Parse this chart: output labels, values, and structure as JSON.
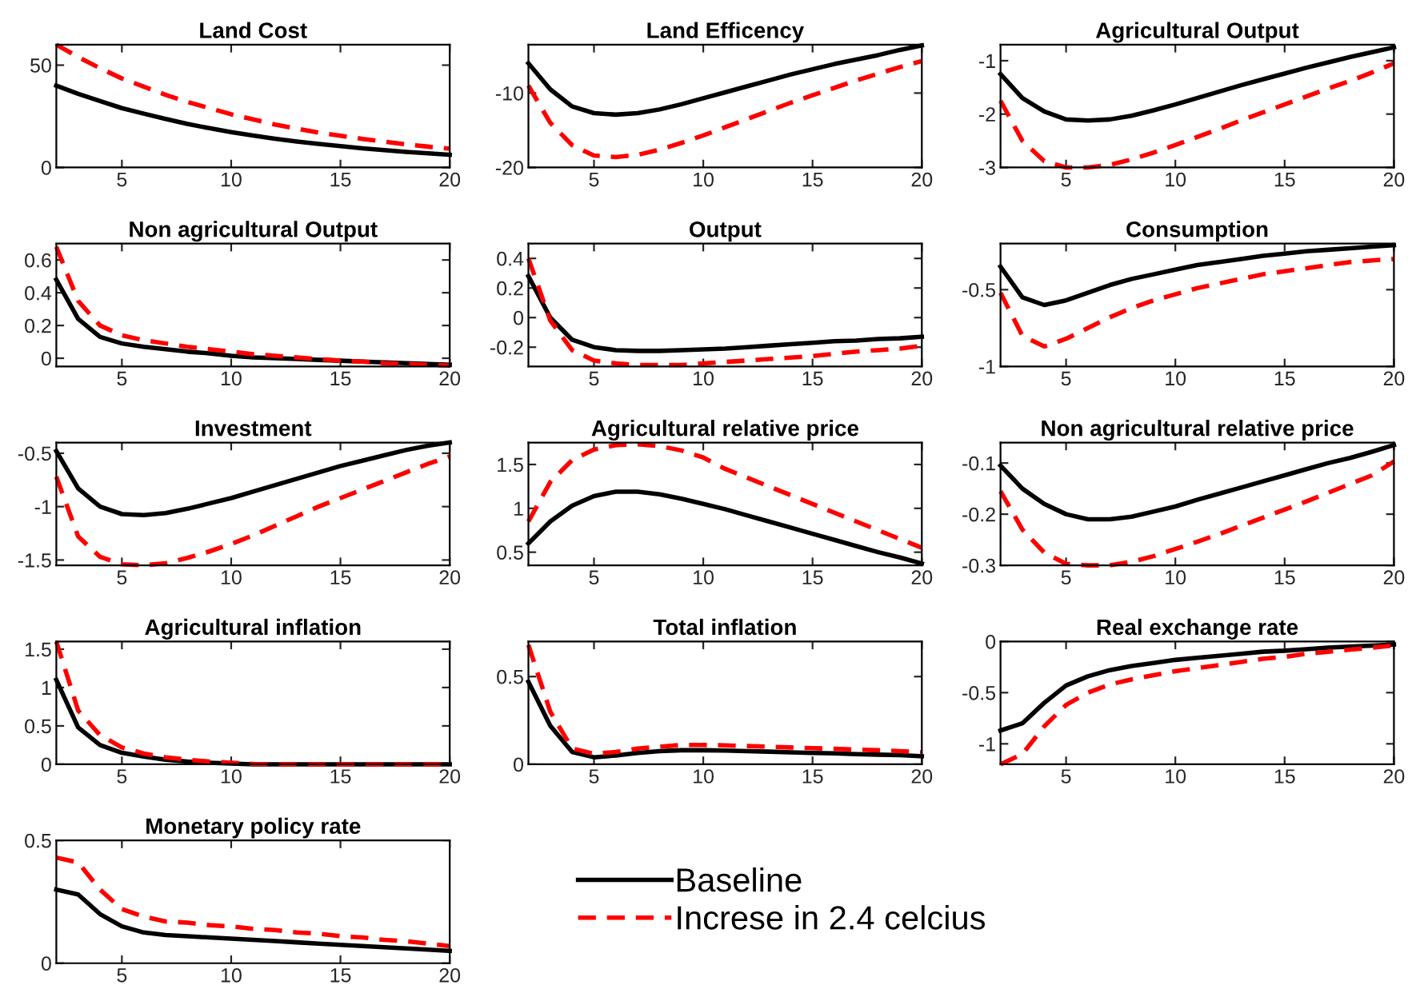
{
  "chart_data": [
    {
      "type": "line",
      "title": "Land Cost",
      "x": [
        2,
        3,
        4,
        5,
        6,
        7,
        8,
        9,
        10,
        11,
        12,
        13,
        14,
        15,
        16,
        17,
        18,
        19,
        20
      ],
      "xlim": [
        2,
        20
      ],
      "xticks": [
        5,
        10,
        15,
        20
      ],
      "ylim": [
        0,
        60
      ],
      "yticks": [
        0,
        50
      ],
      "grid": false,
      "series": [
        {
          "color": "#000000",
          "line_style": "solid",
          "values": [
            40,
            36,
            32.5,
            29,
            26.3,
            23.7,
            21.3,
            19.2,
            17.3,
            15.6,
            14.1,
            12.7,
            11.5,
            10.4,
            9.4,
            8.5,
            7.6,
            6.9,
            6.2
          ]
        },
        {
          "color": "#ff0000",
          "line_style": "dashed",
          "values": [
            60,
            54,
            48.5,
            43.5,
            39.5,
            35.5,
            32,
            29,
            26,
            23.5,
            21,
            19,
            17,
            15.5,
            14,
            12.6,
            11.3,
            10.2,
            9.2
          ]
        }
      ]
    },
    {
      "type": "line",
      "title": "Land Efficency",
      "x": [
        2,
        3,
        4,
        5,
        6,
        7,
        8,
        9,
        10,
        11,
        12,
        13,
        14,
        15,
        16,
        17,
        18,
        19,
        20
      ],
      "xlim": [
        2,
        20
      ],
      "xticks": [
        5,
        10,
        15,
        20
      ],
      "ylim": [
        -20,
        -3.5
      ],
      "yticks": [
        -20,
        -10
      ],
      "grid": false,
      "series": [
        {
          "color": "#000000",
          "line_style": "solid",
          "values": [
            -6,
            -9.5,
            -11.8,
            -12.7,
            -12.9,
            -12.7,
            -12.2,
            -11.5,
            -10.7,
            -9.9,
            -9.1,
            -8.3,
            -7.5,
            -6.8,
            -6.1,
            -5.5,
            -4.9,
            -4.2,
            -3.6
          ]
        },
        {
          "color": "#ff0000",
          "line_style": "dashed",
          "values": [
            -9,
            -14,
            -17,
            -18.4,
            -18.6,
            -18.3,
            -17.6,
            -16.7,
            -15.7,
            -14.6,
            -13.5,
            -12.4,
            -11.3,
            -10.3,
            -9.3,
            -8.3,
            -7.4,
            -6.5,
            -5.7
          ]
        }
      ]
    },
    {
      "type": "line",
      "title": "Agricultural Output",
      "x": [
        2,
        3,
        4,
        5,
        6,
        7,
        8,
        9,
        10,
        11,
        12,
        13,
        14,
        15,
        16,
        17,
        18,
        19,
        20
      ],
      "xlim": [
        2,
        20
      ],
      "xticks": [
        5,
        10,
        15,
        20
      ],
      "ylim": [
        -3,
        -0.7
      ],
      "yticks": [
        -3,
        -2,
        -1
      ],
      "grid": false,
      "series": [
        {
          "color": "#000000",
          "line_style": "solid",
          "values": [
            -1.25,
            -1.7,
            -1.95,
            -2.1,
            -2.12,
            -2.1,
            -2.03,
            -1.93,
            -1.82,
            -1.7,
            -1.58,
            -1.46,
            -1.35,
            -1.24,
            -1.13,
            -1.03,
            -0.93,
            -0.84,
            -0.75
          ]
        },
        {
          "color": "#ff0000",
          "line_style": "dashed",
          "values": [
            -1.75,
            -2.5,
            -2.88,
            -3.0,
            -3.0,
            -2.95,
            -2.85,
            -2.72,
            -2.58,
            -2.43,
            -2.28,
            -2.12,
            -1.97,
            -1.82,
            -1.67,
            -1.52,
            -1.38,
            -1.22,
            -1.05
          ]
        }
      ]
    },
    {
      "type": "line",
      "title": "Non agricultural Output",
      "x": [
        2,
        3,
        4,
        5,
        6,
        7,
        8,
        9,
        10,
        11,
        12,
        13,
        14,
        15,
        16,
        17,
        18,
        19,
        20
      ],
      "xlim": [
        2,
        20
      ],
      "xticks": [
        5,
        10,
        15,
        20
      ],
      "ylim": [
        -0.05,
        0.7
      ],
      "yticks": [
        0,
        0.2,
        0.4,
        0.6
      ],
      "grid": false,
      "series": [
        {
          "color": "#000000",
          "line_style": "solid",
          "values": [
            0.48,
            0.24,
            0.13,
            0.09,
            0.07,
            0.055,
            0.04,
            0.03,
            0.015,
            0.005,
            0,
            -0.005,
            -0.01,
            -0.015,
            -0.02,
            -0.025,
            -0.03,
            -0.035,
            -0.04
          ]
        },
        {
          "color": "#ff0000",
          "line_style": "dashed",
          "values": [
            0.68,
            0.35,
            0.2,
            0.14,
            0.11,
            0.09,
            0.07,
            0.055,
            0.04,
            0.025,
            0.015,
            0.005,
            -0.005,
            -0.015,
            -0.02,
            -0.03,
            -0.035,
            -0.04,
            -0.045
          ]
        }
      ]
    },
    {
      "type": "line",
      "title": "Output",
      "x": [
        2,
        3,
        4,
        5,
        6,
        7,
        8,
        9,
        10,
        11,
        12,
        13,
        14,
        15,
        16,
        17,
        18,
        19,
        20
      ],
      "xlim": [
        2,
        20
      ],
      "xticks": [
        5,
        10,
        15,
        20
      ],
      "ylim": [
        -0.33,
        0.5
      ],
      "yticks": [
        -0.2,
        0,
        0.2,
        0.4
      ],
      "grid": false,
      "series": [
        {
          "color": "#000000",
          "line_style": "solid",
          "values": [
            0.28,
            0.0,
            -0.15,
            -0.2,
            -0.22,
            -0.225,
            -0.225,
            -0.22,
            -0.215,
            -0.21,
            -0.2,
            -0.19,
            -0.18,
            -0.17,
            -0.16,
            -0.155,
            -0.145,
            -0.14,
            -0.13
          ]
        },
        {
          "color": "#ff0000",
          "line_style": "dashed",
          "values": [
            0.4,
            -0.02,
            -0.22,
            -0.29,
            -0.31,
            -0.32,
            -0.32,
            -0.32,
            -0.31,
            -0.3,
            -0.29,
            -0.28,
            -0.27,
            -0.26,
            -0.245,
            -0.23,
            -0.22,
            -0.21,
            -0.19
          ]
        }
      ]
    },
    {
      "type": "line",
      "title": "Consumption",
      "x": [
        2,
        3,
        4,
        5,
        6,
        7,
        8,
        9,
        10,
        11,
        12,
        13,
        14,
        15,
        16,
        17,
        18,
        19,
        20
      ],
      "xlim": [
        2,
        20
      ],
      "xticks": [
        5,
        10,
        15,
        20
      ],
      "ylim": [
        -1,
        -0.2
      ],
      "yticks": [
        -1,
        -0.5
      ],
      "grid": false,
      "series": [
        {
          "color": "#000000",
          "line_style": "solid",
          "values": [
            -0.35,
            -0.55,
            -0.6,
            -0.57,
            -0.52,
            -0.47,
            -0.43,
            -0.4,
            -0.37,
            -0.34,
            -0.32,
            -0.3,
            -0.28,
            -0.265,
            -0.25,
            -0.24,
            -0.23,
            -0.22,
            -0.21
          ]
        },
        {
          "color": "#ff0000",
          "line_style": "dashed",
          "values": [
            -0.52,
            -0.8,
            -0.87,
            -0.82,
            -0.75,
            -0.68,
            -0.62,
            -0.57,
            -0.53,
            -0.49,
            -0.46,
            -0.43,
            -0.4,
            -0.38,
            -0.36,
            -0.34,
            -0.32,
            -0.31,
            -0.3
          ]
        }
      ]
    },
    {
      "type": "line",
      "title": "Investment",
      "x": [
        2,
        3,
        4,
        5,
        6,
        7,
        8,
        9,
        10,
        11,
        12,
        13,
        14,
        15,
        16,
        17,
        18,
        19,
        20
      ],
      "xlim": [
        2,
        20
      ],
      "xticks": [
        5,
        10,
        15,
        20
      ],
      "ylim": [
        -1.55,
        -0.4
      ],
      "yticks": [
        -1.5,
        -1,
        -0.5
      ],
      "grid": false,
      "series": [
        {
          "color": "#000000",
          "line_style": "solid",
          "values": [
            -0.48,
            -0.83,
            -1.0,
            -1.07,
            -1.08,
            -1.06,
            -1.02,
            -0.97,
            -0.92,
            -0.86,
            -0.8,
            -0.74,
            -0.68,
            -0.62,
            -0.57,
            -0.52,
            -0.47,
            -0.43,
            -0.4
          ]
        },
        {
          "color": "#ff0000",
          "line_style": "dashed",
          "values": [
            -0.72,
            -1.28,
            -1.47,
            -1.54,
            -1.55,
            -1.53,
            -1.48,
            -1.42,
            -1.35,
            -1.27,
            -1.18,
            -1.09,
            -1.0,
            -0.92,
            -0.84,
            -0.76,
            -0.68,
            -0.6,
            -0.53
          ]
        }
      ]
    },
    {
      "type": "line",
      "title": "Agricultural relative price",
      "x": [
        2,
        3,
        4,
        5,
        6,
        7,
        8,
        9,
        10,
        11,
        12,
        13,
        14,
        15,
        16,
        17,
        18,
        19,
        20
      ],
      "xlim": [
        2,
        20
      ],
      "xticks": [
        5,
        10,
        15,
        20
      ],
      "ylim": [
        0.35,
        1.75
      ],
      "yticks": [
        0.5,
        1,
        1.5
      ],
      "grid": false,
      "series": [
        {
          "color": "#000000",
          "line_style": "solid",
          "values": [
            0.6,
            0.85,
            1.03,
            1.14,
            1.19,
            1.19,
            1.16,
            1.11,
            1.05,
            0.99,
            0.92,
            0.85,
            0.78,
            0.71,
            0.64,
            0.57,
            0.5,
            0.44,
            0.37
          ]
        },
        {
          "color": "#ff0000",
          "line_style": "dashed",
          "values": [
            0.85,
            1.3,
            1.55,
            1.67,
            1.72,
            1.73,
            1.71,
            1.66,
            1.58,
            1.45,
            1.35,
            1.25,
            1.15,
            1.05,
            0.95,
            0.85,
            0.75,
            0.65,
            0.55
          ]
        }
      ]
    },
    {
      "type": "line",
      "title": "Non agricultural relative price",
      "x": [
        2,
        3,
        4,
        5,
        6,
        7,
        8,
        9,
        10,
        11,
        12,
        13,
        14,
        15,
        16,
        17,
        18,
        19,
        20
      ],
      "xlim": [
        2,
        20
      ],
      "xticks": [
        5,
        10,
        15,
        20
      ],
      "ylim": [
        -0.3,
        -0.06
      ],
      "yticks": [
        -0.3,
        -0.2,
        -0.1
      ],
      "grid": false,
      "series": [
        {
          "color": "#000000",
          "line_style": "solid",
          "values": [
            -0.105,
            -0.15,
            -0.18,
            -0.2,
            -0.21,
            -0.21,
            -0.205,
            -0.195,
            -0.185,
            -0.172,
            -0.16,
            -0.148,
            -0.136,
            -0.124,
            -0.112,
            -0.1,
            -0.09,
            -0.078,
            -0.065
          ]
        },
        {
          "color": "#ff0000",
          "line_style": "dashed",
          "values": [
            -0.155,
            -0.23,
            -0.275,
            -0.297,
            -0.3,
            -0.3,
            -0.293,
            -0.282,
            -0.268,
            -0.254,
            -0.239,
            -0.223,
            -0.207,
            -0.191,
            -0.175,
            -0.158,
            -0.141,
            -0.124,
            -0.097
          ]
        }
      ]
    },
    {
      "type": "line",
      "title": "Agricultural inflation",
      "x": [
        2,
        3,
        4,
        5,
        6,
        7,
        8,
        9,
        10,
        11,
        12,
        13,
        14,
        15,
        16,
        17,
        18,
        19,
        20
      ],
      "xlim": [
        2,
        20
      ],
      "xticks": [
        5,
        10,
        15,
        20
      ],
      "ylim": [
        0,
        1.6
      ],
      "yticks": [
        0,
        0.5,
        1,
        1.5
      ],
      "grid": false,
      "series": [
        {
          "color": "#000000",
          "line_style": "solid",
          "values": [
            1.1,
            0.48,
            0.25,
            0.15,
            0.1,
            0.06,
            0.035,
            0.02,
            0.01,
            0,
            0,
            0,
            0,
            0,
            0,
            0,
            0,
            0,
            0
          ]
        },
        {
          "color": "#ff0000",
          "line_style": "dashed",
          "values": [
            1.6,
            0.7,
            0.38,
            0.22,
            0.14,
            0.09,
            0.06,
            0.035,
            0.02,
            0.005,
            0,
            0,
            0,
            0,
            0,
            0,
            0,
            0,
            0
          ]
        }
      ]
    },
    {
      "type": "line",
      "title": "Total inflation",
      "x": [
        2,
        3,
        4,
        5,
        6,
        7,
        8,
        9,
        10,
        11,
        12,
        13,
        14,
        15,
        16,
        17,
        18,
        19,
        20
      ],
      "xlim": [
        2,
        20
      ],
      "xticks": [
        5,
        10,
        15,
        20
      ],
      "ylim": [
        0,
        0.7
      ],
      "yticks": [
        0,
        0.5
      ],
      "grid": false,
      "series": [
        {
          "color": "#000000",
          "line_style": "solid",
          "values": [
            0.47,
            0.22,
            0.07,
            0.04,
            0.05,
            0.065,
            0.075,
            0.08,
            0.08,
            0.078,
            0.075,
            0.072,
            0.068,
            0.065,
            0.062,
            0.058,
            0.055,
            0.052,
            0.046
          ]
        },
        {
          "color": "#ff0000",
          "line_style": "dashed",
          "values": [
            0.68,
            0.3,
            0.09,
            0.06,
            0.07,
            0.09,
            0.1,
            0.11,
            0.11,
            0.108,
            0.104,
            0.1,
            0.096,
            0.092,
            0.088,
            0.084,
            0.08,
            0.075,
            0.068
          ]
        }
      ]
    },
    {
      "type": "line",
      "title": "Real exchange rate",
      "x": [
        2,
        3,
        4,
        5,
        6,
        7,
        8,
        9,
        10,
        11,
        12,
        13,
        14,
        15,
        16,
        17,
        18,
        19,
        20
      ],
      "xlim": [
        2,
        20
      ],
      "xticks": [
        5,
        10,
        15,
        20
      ],
      "ylim": [
        -1.2,
        0
      ],
      "yticks": [
        -1,
        -0.5,
        0
      ],
      "grid": false,
      "series": [
        {
          "color": "#000000",
          "line_style": "solid",
          "values": [
            -0.87,
            -0.8,
            -0.6,
            -0.43,
            -0.34,
            -0.28,
            -0.24,
            -0.21,
            -0.18,
            -0.16,
            -0.14,
            -0.12,
            -0.1,
            -0.09,
            -0.075,
            -0.06,
            -0.05,
            -0.04,
            -0.03
          ]
        },
        {
          "color": "#ff0000",
          "line_style": "dashed",
          "values": [
            -1.2,
            -1.1,
            -0.83,
            -0.62,
            -0.5,
            -0.42,
            -0.37,
            -0.33,
            -0.29,
            -0.26,
            -0.23,
            -0.2,
            -0.17,
            -0.15,
            -0.12,
            -0.1,
            -0.08,
            -0.06,
            -0.04
          ]
        }
      ]
    },
    {
      "type": "line",
      "title": "Monetary policy rate",
      "x": [
        2,
        3,
        4,
        5,
        6,
        7,
        8,
        9,
        10,
        11,
        12,
        13,
        14,
        15,
        16,
        17,
        18,
        19,
        20
      ],
      "xlim": [
        2,
        20
      ],
      "xticks": [
        5,
        10,
        15,
        20
      ],
      "ylim": [
        0,
        0.5
      ],
      "yticks": [
        0,
        0.5
      ],
      "grid": false,
      "legend": "right",
      "series": [
        {
          "name": "Baseline",
          "color": "#000000",
          "line_style": "solid",
          "values": [
            0.3,
            0.28,
            0.2,
            0.15,
            0.125,
            0.115,
            0.11,
            0.105,
            0.1,
            0.095,
            0.09,
            0.085,
            0.08,
            0.075,
            0.07,
            0.065,
            0.06,
            0.055,
            0.05
          ]
        },
        {
          "name": "Increse in 2.4 celcius",
          "color": "#ff0000",
          "line_style": "dashed",
          "values": [
            0.43,
            0.41,
            0.3,
            0.22,
            0.19,
            0.17,
            0.165,
            0.155,
            0.15,
            0.14,
            0.135,
            0.125,
            0.12,
            0.11,
            0.105,
            0.095,
            0.09,
            0.08,
            0.07
          ]
        }
      ]
    }
  ]
}
